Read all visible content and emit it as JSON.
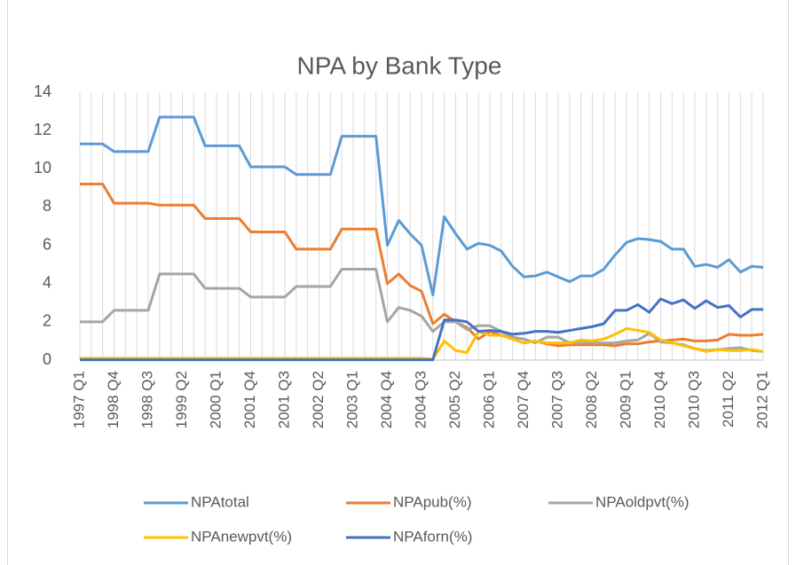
{
  "chart_data": {
    "type": "line",
    "title": "NPA by Bank Type",
    "categories": [
      "1997 Q1",
      null,
      null,
      "1998 Q4",
      null,
      null,
      "1998 Q3",
      null,
      null,
      "1999 Q2",
      null,
      null,
      "2000 Q1",
      null,
      null,
      "2001 Q4",
      null,
      null,
      "2001 Q3",
      null,
      null,
      "2002 Q2",
      null,
      null,
      "2003 Q1",
      null,
      null,
      "2004 Q4",
      null,
      null,
      "2004 Q3",
      null,
      null,
      "2005 Q2",
      null,
      null,
      "2006 Q1",
      null,
      null,
      "2007 Q4",
      null,
      null,
      "2007 Q3",
      null,
      null,
      "2008 Q2",
      null,
      null,
      "2009 Q1",
      null,
      null,
      "2010 Q4",
      null,
      null,
      "2010 Q3",
      null,
      null,
      "2011 Q2",
      null,
      null,
      "2012 Q1"
    ],
    "series": [
      {
        "name": "NPAtotal",
        "color": "#5b9bd5",
        "values": [
          11.3,
          11.3,
          11.3,
          10.9,
          10.9,
          10.9,
          10.9,
          12.7,
          12.7,
          12.7,
          12.7,
          11.2,
          11.2,
          11.2,
          11.2,
          10.1,
          10.1,
          10.1,
          10.1,
          9.7,
          9.7,
          9.7,
          9.7,
          11.7,
          11.7,
          11.7,
          11.7,
          6.0,
          7.3,
          6.6,
          6.0,
          3.4,
          7.5,
          6.6,
          5.8,
          6.1,
          6.0,
          5.7,
          4.9,
          4.35,
          4.4,
          4.6,
          4.35,
          4.1,
          4.4,
          4.4,
          4.75,
          5.5,
          6.15,
          6.35,
          6.3,
          6.2,
          5.8,
          5.8,
          4.9,
          5.0,
          4.85,
          5.25,
          4.6,
          4.9,
          4.85
        ]
      },
      {
        "name": "NPApub(%)",
        "color": "#ed7d31",
        "values": [
          9.2,
          9.2,
          9.2,
          8.2,
          8.2,
          8.2,
          8.2,
          8.1,
          8.1,
          8.1,
          8.1,
          7.4,
          7.4,
          7.4,
          7.4,
          6.7,
          6.7,
          6.7,
          6.7,
          5.8,
          5.8,
          5.8,
          5.8,
          6.85,
          6.85,
          6.85,
          6.85,
          4.0,
          4.5,
          3.9,
          3.6,
          1.9,
          2.4,
          2.0,
          1.7,
          1.1,
          1.5,
          1.3,
          1.1,
          0.9,
          1.0,
          0.85,
          0.75,
          0.8,
          0.8,
          0.8,
          0.8,
          0.75,
          0.85,
          0.85,
          0.95,
          1.0,
          1.05,
          1.1,
          1.0,
          1.0,
          1.05,
          1.35,
          1.3,
          1.3,
          1.35
        ]
      },
      {
        "name": "NPAoldpvt(%)",
        "color": "#a5a5a5",
        "values": [
          2.0,
          2.0,
          2.0,
          2.6,
          2.6,
          2.6,
          2.6,
          4.5,
          4.5,
          4.5,
          4.5,
          3.75,
          3.75,
          3.75,
          3.75,
          3.3,
          3.3,
          3.3,
          3.3,
          3.85,
          3.85,
          3.85,
          3.85,
          4.75,
          4.75,
          4.75,
          4.75,
          2.0,
          2.75,
          2.6,
          2.3,
          1.5,
          2.0,
          2.0,
          1.6,
          1.8,
          1.8,
          1.5,
          1.2,
          1.1,
          0.9,
          1.2,
          1.2,
          0.9,
          0.9,
          0.9,
          0.9,
          0.9,
          1.0,
          1.05,
          1.4,
          0.95,
          0.9,
          0.8,
          0.6,
          0.5,
          0.55,
          0.6,
          0.65,
          0.5,
          0.45
        ]
      },
      {
        "name": "NPAnewpvt(%)",
        "color": "#ffc000",
        "values": [
          0.1,
          0.1,
          0.1,
          0.1,
          0.1,
          0.1,
          0.1,
          0.1,
          0.1,
          0.1,
          0.1,
          0.1,
          0.1,
          0.1,
          0.1,
          0.1,
          0.1,
          0.1,
          0.1,
          0.1,
          0.1,
          0.1,
          0.1,
          0.1,
          0.1,
          0.1,
          0.1,
          0.1,
          0.1,
          0.1,
          0.1,
          0.05,
          1.0,
          0.5,
          0.4,
          1.5,
          1.3,
          1.3,
          1.1,
          0.9,
          1.0,
          0.9,
          0.9,
          0.9,
          1.05,
          1.0,
          1.1,
          1.35,
          1.65,
          1.55,
          1.45,
          1.05,
          0.9,
          0.75,
          0.6,
          0.45,
          0.55,
          0.5,
          0.5,
          0.55,
          0.45
        ]
      },
      {
        "name": "NPAforn(%)",
        "color": "#4472c4",
        "values": [
          0.02,
          0.02,
          0.02,
          0.02,
          0.02,
          0.02,
          0.02,
          0.02,
          0.02,
          0.02,
          0.02,
          0.02,
          0.02,
          0.02,
          0.02,
          0.02,
          0.02,
          0.02,
          0.02,
          0.02,
          0.02,
          0.02,
          0.02,
          0.02,
          0.02,
          0.02,
          0.02,
          0.02,
          0.02,
          0.02,
          0.02,
          0.02,
          2.1,
          2.1,
          2.0,
          1.5,
          1.55,
          1.5,
          1.35,
          1.4,
          1.5,
          1.5,
          1.45,
          1.55,
          1.65,
          1.75,
          1.9,
          2.6,
          2.6,
          2.9,
          2.5,
          3.2,
          2.95,
          3.15,
          2.7,
          3.1,
          2.75,
          2.85,
          2.25,
          2.65,
          2.65
        ]
      }
    ],
    "ylim": [
      0,
      14
    ],
    "yticks": [
      0,
      2,
      4,
      6,
      8,
      10,
      12,
      14
    ],
    "grid": true,
    "legend": "bottom"
  }
}
